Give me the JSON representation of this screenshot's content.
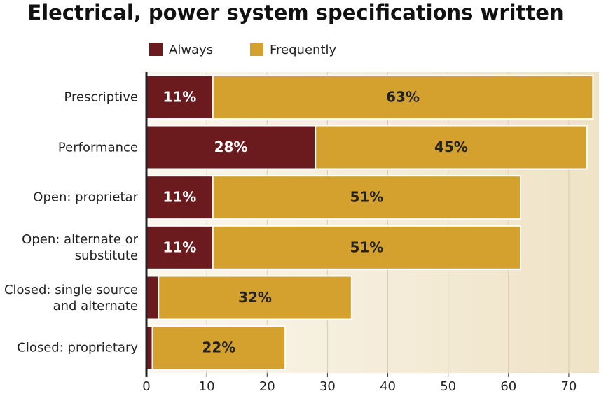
{
  "chart_data": {
    "type": "stacked-barh",
    "title": "Electrical, power system specifications written",
    "categories": [
      "Prescriptive",
      "Performance",
      "Open: proprietar",
      "Open: alternate or substitute",
      "Closed: single source and alternate",
      "Closed: proprietary"
    ],
    "series": [
      {
        "name": "Always",
        "color": "#6b1a1e",
        "values": [
          11,
          28,
          11,
          11,
          2,
          1
        ],
        "value_labels": [
          "11%",
          "28%",
          "11%",
          "11%",
          null,
          null
        ]
      },
      {
        "name": "Frequently",
        "color": "#d4a12f",
        "values": [
          63,
          45,
          51,
          51,
          32,
          22
        ],
        "value_labels": [
          "63%",
          "45%",
          "51%",
          "51%",
          "32%",
          "22%"
        ]
      }
    ],
    "xlim": [
      0,
      75
    ],
    "xticks": [
      0,
      10,
      20,
      30,
      40,
      50,
      60,
      70
    ],
    "grid": true
  }
}
